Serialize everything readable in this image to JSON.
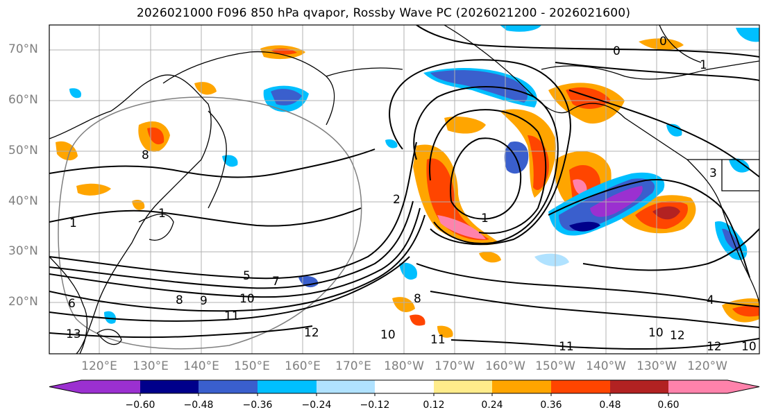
{
  "title": "2026021000 F096 850 hPa qvapor, Rossby Wave PC (2026021200 - 2026021600)",
  "lat_labels": [
    "70°N",
    "60°N",
    "50°N",
    "40°N",
    "30°N",
    "20°N"
  ],
  "lon_labels": [
    "120°E",
    "130°E",
    "140°E",
    "150°E",
    "160°E",
    "170°E",
    "180°W",
    "170°W",
    "160°W",
    "150°W",
    "140°W",
    "130°W",
    "120°W"
  ],
  "colorbar": {
    "ticks": [
      "−0.60",
      "−0.48",
      "−0.36",
      "−0.24",
      "−0.12",
      "0.12",
      "0.24",
      "0.36",
      "0.48",
      "0.60"
    ],
    "colors": [
      "#9b30d0",
      "#00008b",
      "#3a5fcd",
      "#00bfff",
      "#b0e2ff",
      "#ffffff",
      "#ffec8b",
      "#ffa500",
      "#ff4500",
      "#b22222",
      "#ff82ab"
    ]
  },
  "contour_labels": [
    "0",
    "0",
    "1",
    "1",
    "1",
    "1",
    "2",
    "3",
    "4",
    "5",
    "6",
    "7",
    "8",
    "8",
    "8",
    "9",
    "10",
    "10",
    "10",
    "11",
    "11",
    "11",
    "12",
    "12",
    "12",
    "13",
    "10"
  ]
}
